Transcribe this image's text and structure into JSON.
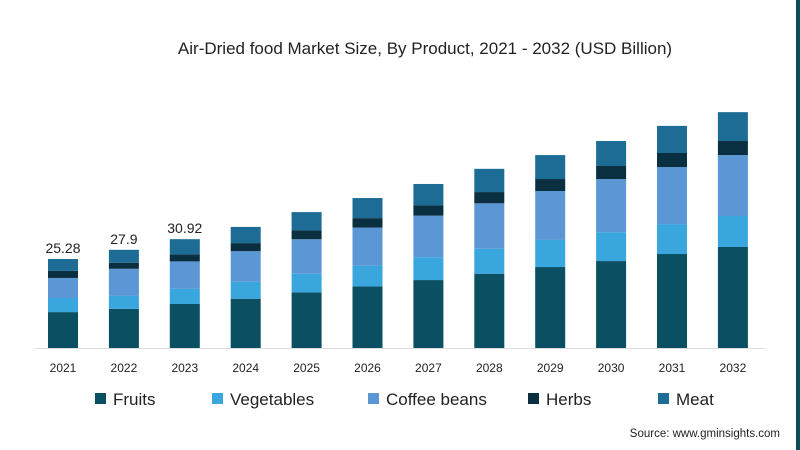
{
  "chart_data": {
    "type": "bar",
    "stacked": true,
    "title": "Air-Dried food Market Size, By Product, 2021 - 2032 (USD Billion)",
    "xlabel": "",
    "ylabel": "",
    "ylim": [
      0,
      70
    ],
    "grid": false,
    "legend_position": "bottom",
    "categories": [
      "2021",
      "2022",
      "2023",
      "2024",
      "2025",
      "2026",
      "2027",
      "2028",
      "2029",
      "2030",
      "2031",
      "2032"
    ],
    "series": [
      {
        "name": "Fruits",
        "color": "#0b4f63",
        "values": [
          10.2,
          11.1,
          12.5,
          14.0,
          15.8,
          17.5,
          19.3,
          21.1,
          23.0,
          24.7,
          26.7,
          28.7
        ]
      },
      {
        "name": "Vegetables",
        "color": "#3aa6de",
        "values": [
          4.0,
          3.7,
          4.3,
          4.8,
          5.3,
          5.9,
          6.5,
          7.1,
          7.7,
          8.2,
          8.5,
          8.8
        ]
      },
      {
        "name": "Coffee beans",
        "color": "#5b97d4",
        "values": [
          5.7,
          7.7,
          7.8,
          8.7,
          9.8,
          10.8,
          11.8,
          12.9,
          13.9,
          15.1,
          16.2,
          17.3
        ]
      },
      {
        "name": "Herbs",
        "color": "#0a2f40",
        "values": [
          2.0,
          1.7,
          2.0,
          2.3,
          2.5,
          2.7,
          2.9,
          3.2,
          3.4,
          3.7,
          4.0,
          4.0
        ]
      },
      {
        "name": "Meat",
        "color": "#1c6c96",
        "values": [
          3.38,
          3.7,
          4.32,
          4.6,
          5.2,
          5.7,
          6.1,
          6.6,
          6.8,
          7.1,
          7.7,
          8.2
        ]
      }
    ],
    "data_labels": [
      {
        "category": "2021",
        "text": "25.28"
      },
      {
        "category": "2022",
        "text": "27.9"
      },
      {
        "category": "2023",
        "text": "30.92"
      }
    ]
  },
  "source": "Source: www.gminsights.com"
}
